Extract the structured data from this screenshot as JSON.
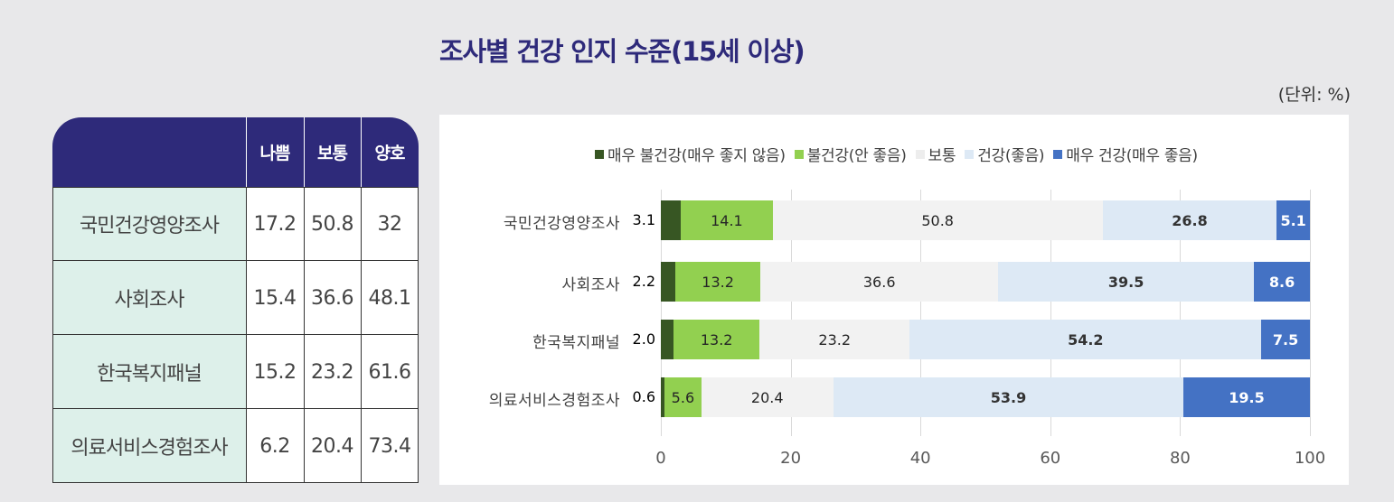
{
  "title": "조사별 건강 인지 수준(15세 이상)",
  "unit": "(단위: %)",
  "table": {
    "headers": [
      "",
      "나쁨",
      "보통",
      "양호"
    ],
    "rows": [
      {
        "label": "국민건강영양조사",
        "bad": "17.2",
        "normal": "50.8",
        "good": "32"
      },
      {
        "label": "사회조사",
        "bad": "15.4",
        "normal": "36.6",
        "good": "48.1"
      },
      {
        "label": "한국복지패널",
        "bad": "15.2",
        "normal": "23.2",
        "good": "61.6"
      },
      {
        "label": "의료서비스경험조사",
        "bad": "6.2",
        "normal": "20.4",
        "good": "73.4"
      }
    ]
  },
  "colors": {
    "header_bg": "#2e2a7a",
    "label_bg": "#ddf0ea",
    "very_bad": "#375623",
    "bad": "#92d050",
    "normal": "#f2f2f2",
    "good": "#dde9f5",
    "very_good": "#4472c4"
  },
  "chart_data": {
    "type": "bar",
    "orientation": "horizontal",
    "stacked": true,
    "title": "조사별 건강 인지 수준(15세 이상)",
    "xlabel": "",
    "ylabel": "",
    "xlim": [
      0,
      100
    ],
    "xticks": [
      "0",
      "20",
      "40",
      "60",
      "80",
      "100"
    ],
    "grid": true,
    "legend_position": "top",
    "categories": [
      "국민건강영양조사",
      "사회조사",
      "한국복지패널",
      "의료서비스경험조사"
    ],
    "series": [
      {
        "name": "매우 불건강(매우 좋지 않음)",
        "values": [
          3.1,
          2.2,
          2.0,
          0.6
        ],
        "labels": [
          "3.1",
          "2.2",
          "2.0",
          "0.6"
        ]
      },
      {
        "name": "불건강(안 좋음)",
        "values": [
          14.1,
          13.2,
          13.2,
          5.6
        ],
        "labels": [
          "14.1",
          "13.2",
          "13.2",
          "5.6"
        ]
      },
      {
        "name": "보통",
        "values": [
          50.8,
          36.6,
          23.2,
          20.4
        ],
        "labels": [
          "50.8",
          "36.6",
          "23.2",
          "20.4"
        ]
      },
      {
        "name": "건강(좋음)",
        "values": [
          26.8,
          39.5,
          54.2,
          53.9
        ],
        "labels": [
          "26.8",
          "39.5",
          "54.2",
          "53.9"
        ]
      },
      {
        "name": "매우 건강(매우 좋음)",
        "values": [
          5.1,
          8.6,
          7.5,
          19.5
        ],
        "labels": [
          "5.1",
          "8.6",
          "7.5",
          "19.5"
        ]
      }
    ]
  }
}
